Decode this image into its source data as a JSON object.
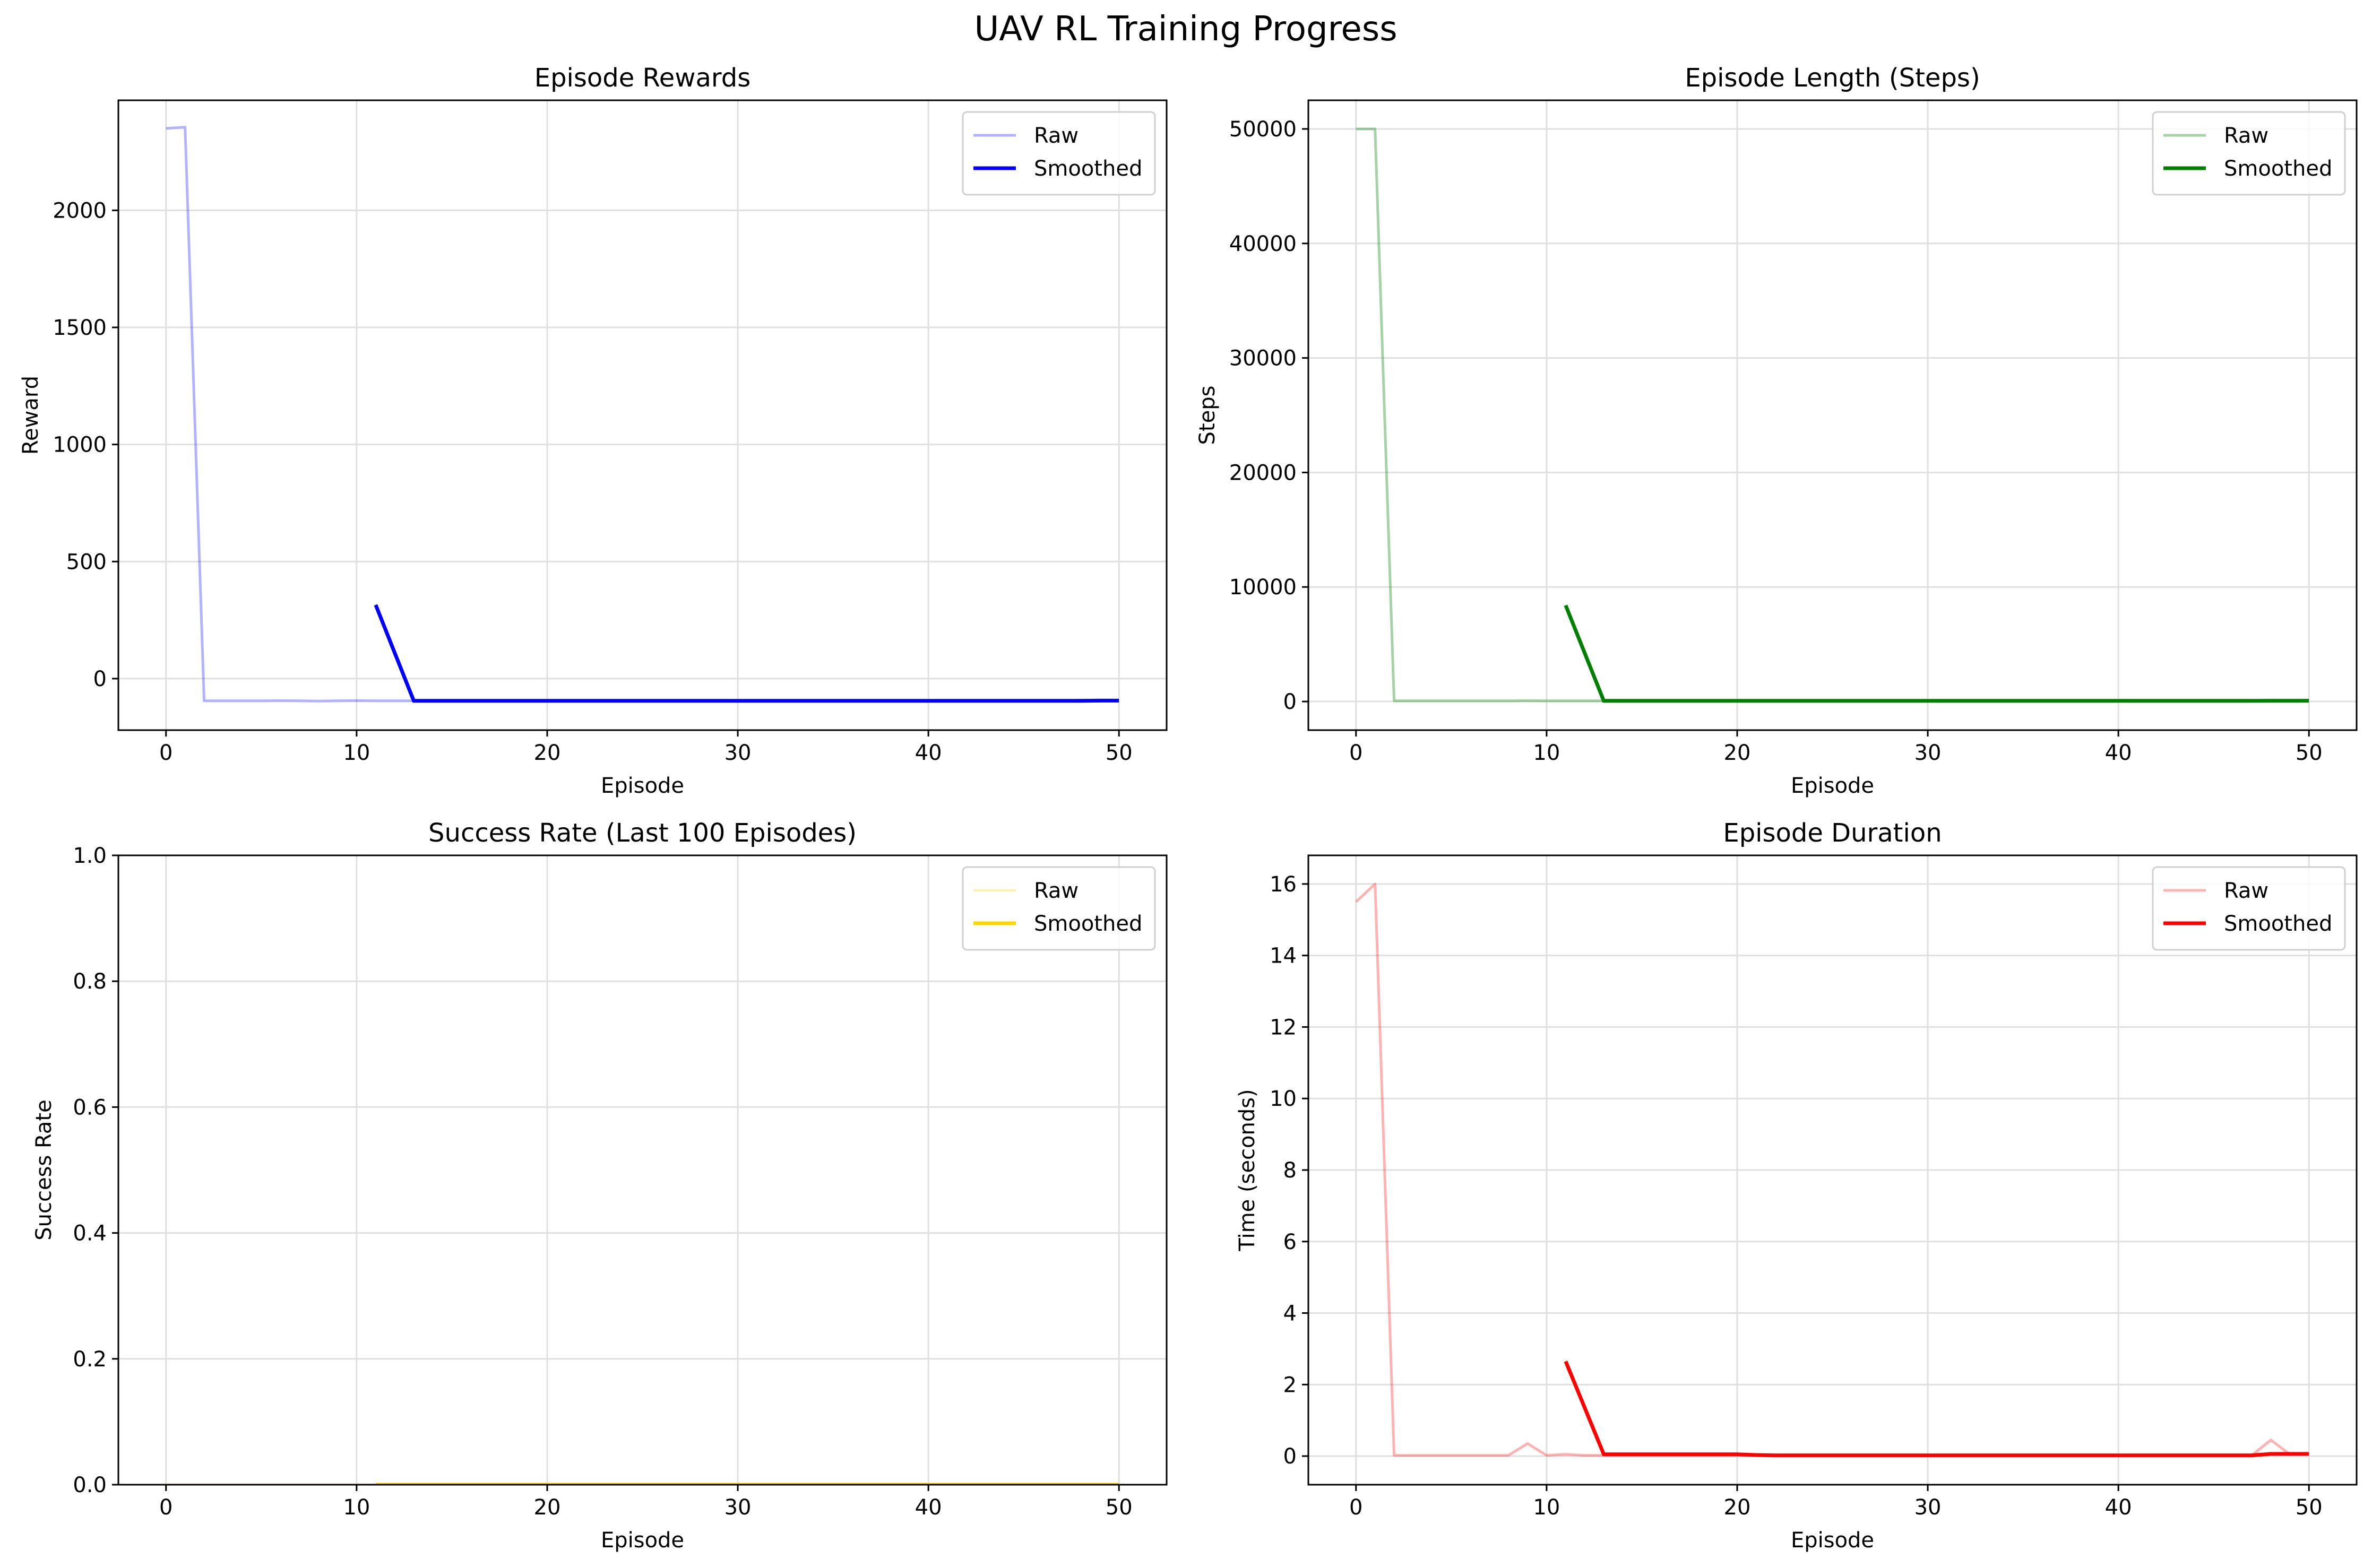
{
  "figure": {
    "title": "UAV RL Training Progress"
  },
  "chart_data": [
    {
      "id": "rewards",
      "type": "line",
      "title": "Episode Rewards",
      "xlabel": "Episode",
      "ylabel": "Reward",
      "xlim": [
        -2.5,
        52.5
      ],
      "ylim": [
        -220,
        2470
      ],
      "xticks": [
        0,
        10,
        20,
        30,
        40,
        50
      ],
      "yticks": [
        0,
        500,
        1000,
        1500,
        2000
      ],
      "grid": true,
      "legend": "top-right",
      "series": [
        {
          "name": "Raw",
          "color": "#0000ff",
          "opacity": 0.3,
          "width": 5,
          "x": [
            0,
            1,
            2,
            3,
            4,
            5,
            6,
            7,
            8,
            9,
            10,
            11,
            12,
            13,
            14,
            15,
            16,
            17,
            18,
            19,
            20,
            21,
            22,
            23,
            24,
            25,
            26,
            27,
            28,
            29,
            30,
            31,
            32,
            33,
            34,
            35,
            36,
            37,
            38,
            39,
            40,
            41,
            42,
            43,
            44,
            45,
            46,
            47,
            48,
            49,
            50
          ],
          "y": [
            2350,
            2355,
            -95,
            -95,
            -95,
            -95,
            -94,
            -95,
            -96,
            -95,
            -94,
            -95,
            -95,
            -95,
            -95,
            -95,
            -95,
            -95,
            -95,
            -95,
            -95,
            -95,
            -95,
            -95,
            -95,
            -95,
            -95,
            -95,
            -95,
            -95,
            -95,
            -95,
            -95,
            -95,
            -95,
            -95,
            -95,
            -95,
            -95,
            -95,
            -95,
            -95,
            -95,
            -95,
            -95,
            -95,
            -95,
            -95,
            -92,
            -94,
            -94
          ]
        },
        {
          "name": "Smoothed",
          "color": "#0000ff",
          "opacity": 1,
          "width": 7,
          "x": [
            11,
            12,
            13,
            14,
            15,
            16,
            17,
            18,
            19,
            20,
            21,
            22,
            23,
            24,
            25,
            26,
            27,
            28,
            29,
            30,
            31,
            32,
            33,
            34,
            35,
            36,
            37,
            38,
            39,
            40,
            41,
            42,
            43,
            44,
            45,
            46,
            47,
            48,
            49,
            50
          ],
          "y": [
            315,
            110,
            -95,
            -95,
            -95,
            -95,
            -95,
            -95,
            -95,
            -95,
            -95,
            -95,
            -95,
            -95,
            -95,
            -95,
            -95,
            -95,
            -95,
            -95,
            -95,
            -95,
            -95,
            -95,
            -95,
            -95,
            -95,
            -95,
            -95,
            -95,
            -95,
            -95,
            -95,
            -95,
            -95,
            -95,
            -95,
            -95,
            -94,
            -94
          ]
        }
      ]
    },
    {
      "id": "length",
      "type": "line",
      "title": "Episode Length (Steps)",
      "xlabel": "Episode",
      "ylabel": "Steps",
      "xlim": [
        -2.5,
        52.5
      ],
      "ylim": [
        -2500,
        52500
      ],
      "xticks": [
        0,
        10,
        20,
        30,
        40,
        50
      ],
      "yticks": [
        0,
        10000,
        20000,
        30000,
        40000,
        50000
      ],
      "grid": true,
      "legend": "top-right",
      "series": [
        {
          "name": "Raw",
          "color": "#008000",
          "opacity": 0.35,
          "width": 5,
          "x": [
            0,
            1,
            2,
            3,
            4,
            5,
            6,
            7,
            8,
            9,
            10,
            11,
            12,
            13,
            14,
            15,
            16,
            17,
            18,
            19,
            20,
            21,
            22,
            23,
            24,
            25,
            26,
            27,
            28,
            29,
            30,
            31,
            32,
            33,
            34,
            35,
            36,
            37,
            38,
            39,
            40,
            41,
            42,
            43,
            44,
            45,
            46,
            47,
            48,
            49,
            50
          ],
          "y": [
            50000,
            50000,
            60,
            60,
            60,
            60,
            60,
            60,
            60,
            80,
            60,
            60,
            60,
            60,
            60,
            60,
            60,
            60,
            60,
            60,
            60,
            60,
            60,
            60,
            60,
            60,
            60,
            60,
            60,
            60,
            60,
            60,
            60,
            60,
            60,
            60,
            60,
            60,
            60,
            60,
            60,
            60,
            60,
            60,
            60,
            60,
            60,
            60,
            110,
            60,
            60
          ]
        },
        {
          "name": "Smoothed",
          "color": "#008000",
          "opacity": 1,
          "width": 7,
          "x": [
            11,
            12,
            13,
            14,
            15,
            16,
            17,
            18,
            19,
            20,
            21,
            22,
            23,
            24,
            25,
            26,
            27,
            28,
            29,
            30,
            31,
            32,
            33,
            34,
            35,
            36,
            37,
            38,
            39,
            40,
            41,
            42,
            43,
            44,
            45,
            46,
            47,
            48,
            49,
            50
          ],
          "y": [
            8400,
            4230,
            60,
            60,
            60,
            60,
            60,
            60,
            60,
            60,
            60,
            60,
            60,
            60,
            60,
            60,
            60,
            60,
            60,
            60,
            60,
            60,
            60,
            60,
            60,
            60,
            60,
            60,
            60,
            60,
            60,
            60,
            60,
            60,
            60,
            60,
            60,
            65,
            65,
            65
          ]
        }
      ]
    },
    {
      "id": "success",
      "type": "line",
      "title": "Success Rate (Last 100 Episodes)",
      "xlabel": "Episode",
      "ylabel": "Success Rate",
      "xlim": [
        -2.5,
        52.5
      ],
      "ylim": [
        0,
        1
      ],
      "xticks": [
        0,
        10,
        20,
        30,
        40,
        50
      ],
      "yticks": [
        0.0,
        0.2,
        0.4,
        0.6,
        0.8,
        1.0
      ],
      "grid": true,
      "legend": "top-right",
      "series": [
        {
          "name": "Raw",
          "color": "#ffd700",
          "opacity": 0.35,
          "width": 4,
          "x": [
            0,
            10,
            20,
            30,
            40,
            50
          ],
          "y": [
            0,
            0,
            0,
            0,
            0,
            0
          ]
        },
        {
          "name": "Smoothed",
          "color": "#ffd700",
          "opacity": 1,
          "width": 7,
          "x": [
            11,
            20,
            30,
            40,
            50
          ],
          "y": [
            0,
            0,
            0,
            0,
            0
          ]
        }
      ]
    },
    {
      "id": "duration",
      "type": "line",
      "title": "Episode Duration",
      "xlabel": "Episode",
      "ylabel": "Time (seconds)",
      "xlim": [
        -2.5,
        52.5
      ],
      "ylim": [
        -0.8,
        16.8
      ],
      "xticks": [
        0,
        10,
        20,
        30,
        40,
        50
      ],
      "yticks": [
        0,
        2,
        4,
        6,
        8,
        10,
        12,
        14,
        16
      ],
      "grid": true,
      "legend": "top-right",
      "series": [
        {
          "name": "Raw",
          "color": "#ff0000",
          "opacity": 0.3,
          "width": 5,
          "x": [
            0,
            1,
            2,
            3,
            4,
            5,
            6,
            7,
            8,
            9,
            10,
            11,
            12,
            13,
            14,
            15,
            16,
            17,
            18,
            19,
            20,
            21,
            22,
            23,
            24,
            25,
            26,
            27,
            28,
            29,
            30,
            31,
            32,
            33,
            34,
            35,
            36,
            37,
            38,
            39,
            40,
            41,
            42,
            43,
            44,
            45,
            46,
            47,
            48,
            49,
            50
          ],
          "y": [
            15.5,
            16.0,
            0.02,
            0.02,
            0.02,
            0.02,
            0.02,
            0.02,
            0.02,
            0.35,
            0.02,
            0.05,
            0.02,
            0.02,
            0.02,
            0.02,
            0.02,
            0.02,
            0.02,
            0.02,
            0.02,
            0.02,
            0.02,
            0.02,
            0.02,
            0.02,
            0.02,
            0.02,
            0.02,
            0.02,
            0.02,
            0.02,
            0.02,
            0.02,
            0.02,
            0.02,
            0.02,
            0.02,
            0.02,
            0.02,
            0.02,
            0.02,
            0.02,
            0.02,
            0.02,
            0.02,
            0.02,
            0.02,
            0.45,
            0.05,
            0.05
          ]
        },
        {
          "name": "Smoothed",
          "color": "#ff0000",
          "opacity": 1,
          "width": 7,
          "x": [
            11,
            12,
            13,
            14,
            15,
            16,
            17,
            18,
            19,
            20,
            21,
            22,
            23,
            24,
            25,
            26,
            27,
            28,
            29,
            30,
            31,
            32,
            33,
            34,
            35,
            36,
            37,
            38,
            39,
            40,
            41,
            42,
            43,
            44,
            45,
            46,
            47,
            48,
            49,
            50
          ],
          "y": [
            2.65,
            1.35,
            0.05,
            0.05,
            0.05,
            0.05,
            0.05,
            0.05,
            0.05,
            0.05,
            0.03,
            0.02,
            0.02,
            0.02,
            0.02,
            0.02,
            0.02,
            0.02,
            0.02,
            0.02,
            0.02,
            0.02,
            0.02,
            0.02,
            0.02,
            0.02,
            0.02,
            0.02,
            0.02,
            0.02,
            0.02,
            0.02,
            0.02,
            0.02,
            0.02,
            0.02,
            0.02,
            0.06,
            0.06,
            0.06
          ]
        }
      ]
    }
  ]
}
